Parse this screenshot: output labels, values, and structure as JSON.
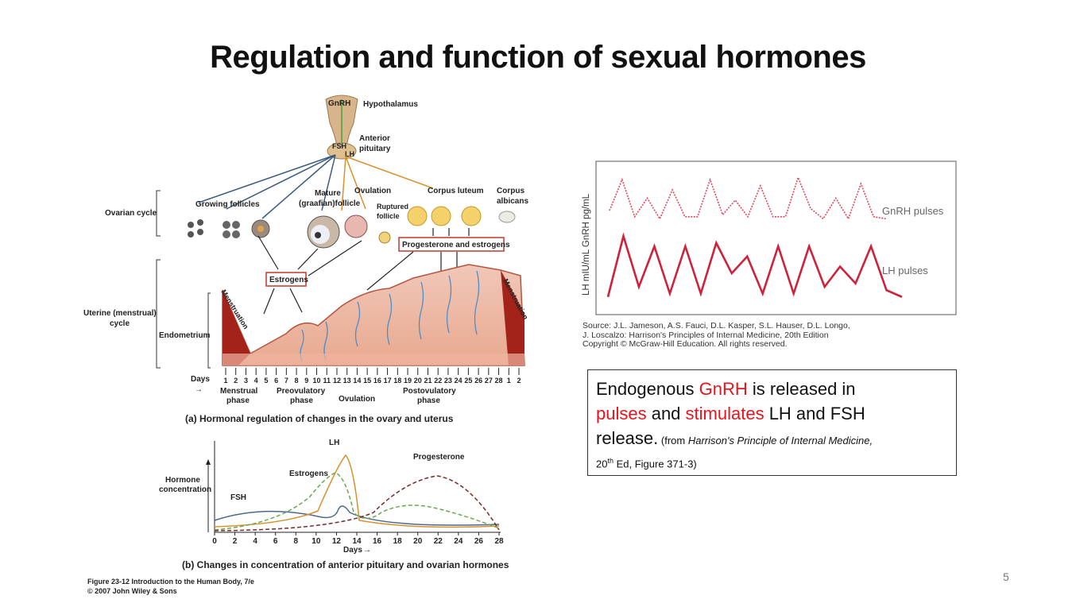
{
  "slide": {
    "title": "Regulation and function of sexual hormones",
    "page_number": "5"
  },
  "left_figure": {
    "hypothalamus_labels": {
      "gnrh": "GnRH",
      "hypothalamus": "Hypothalamus",
      "anterior": "Anterior",
      "pituitary": "pituitary",
      "fsh": "FSH",
      "lh": "LH"
    },
    "ovarian_cycle": "Ovarian cycle",
    "stages": {
      "growing": "Growing follicles",
      "mature1": "Mature",
      "mature2": "(graafian)follicle",
      "ovulation": "Ovulation",
      "ruptured1": "Ruptured",
      "ruptured2": "follicle",
      "corpus_luteum": "Corpus luteum",
      "corpus_albicans1": "Corpus",
      "corpus_albicans2": "albicans"
    },
    "boxes": {
      "estrogens": "Estrogens",
      "prog_estrogens": "Progesterone and estrogens"
    },
    "uterine1": "Uterine (menstrual)",
    "uterine2": "cycle",
    "endometrium": "Endometrium",
    "menstruation_left": "Menstruation",
    "menstruation_right": "Menstruation",
    "days_label": "Days",
    "days": [
      "1",
      "2",
      "3",
      "4",
      "5",
      "6",
      "7",
      "8",
      "9",
      "10",
      "11",
      "12",
      "13",
      "14",
      "15",
      "16",
      "17",
      "18",
      "19",
      "20",
      "21",
      "22",
      "23",
      "24",
      "25",
      "26",
      "27",
      "28",
      "1",
      "2"
    ],
    "phases": {
      "menstrual1": "Menstrual",
      "menstrual2": "phase",
      "preovulatory1": "Preovulatory",
      "preovulatory2": "phase",
      "ovulation": "Ovulation",
      "postovulatory1": "Postovulatory",
      "postovulatory2": "phase"
    },
    "caption_a": "(a) Hormonal regulation of changes in the ovary and uterus",
    "hormone_chart": {
      "ylabel1": "Hormone",
      "ylabel2": "concentration",
      "xlabel": "Days",
      "x_ticks": [
        "0",
        "2",
        "4",
        "6",
        "8",
        "10",
        "12",
        "14",
        "16",
        "18",
        "20",
        "22",
        "24",
        "26",
        "28"
      ],
      "series_labels": {
        "fsh": "FSH",
        "lh": "LH",
        "estrogens": "Estrogens",
        "progesterone": "Progesterone"
      },
      "colors": {
        "fsh": "#4a6a8c",
        "lh": "#d9902c",
        "estrogens": "#6aa84f",
        "progesterone": "#7a2a2a"
      }
    },
    "caption_b": "(b) Changes in concentration of anterior pituitary and ovarian hormones",
    "credit1": "Figure 23-12  Introduction to the Human Body, 7/e",
    "credit2": "© 2007 John Wiley & Sons"
  },
  "chart_data": {
    "type": "line",
    "ylabel": "LH mIU/mL GnRH pg/mL",
    "series": [
      {
        "name": "GnRH pulses",
        "style": "dotted",
        "color": "#e0485a",
        "values": [
          0.25,
          1.0,
          0.1,
          0.55,
          0.05,
          0.75,
          0.1,
          0.1,
          1.0,
          0.15,
          0.5,
          0.1,
          0.85,
          0.1,
          0.1,
          1.05,
          0.3,
          0.05,
          0.55,
          0.05,
          0.9,
          0.1,
          0.05
        ]
      },
      {
        "name": "LH pulses",
        "style": "solid",
        "color": "#d0213a",
        "values": [
          0.05,
          0.95,
          0.2,
          0.8,
          0.1,
          0.8,
          0.1,
          0.85,
          0.4,
          0.65,
          0.1,
          0.8,
          0.1,
          0.8,
          0.2,
          0.5,
          0.25,
          0.8,
          0.15,
          0.05
        ]
      }
    ],
    "legend": [
      "GnRH pulses",
      "LH pulses"
    ]
  },
  "source_note": {
    "line1": "Source: J.L. Jameson, A.S. Fauci, D.L. Kasper, S.L. Hauser, D.L. Longo,",
    "line2": "J. Loscalzo:  Harrison's Principles of Internal Medicine, 20th Edition",
    "line3": "Copyright © McGraw-Hill Education. All rights reserved."
  },
  "caption": {
    "p1": "Endogenous ",
    "p2": "GnRH",
    "p3": " is released in",
    "p4": "pulses",
    "p5": " and ",
    "p6": "stimulates",
    "p7": " LH and FSH",
    "p8": "release.",
    "p9": "  (from ",
    "p10": "Harrison's Principle of Internal Medicine,",
    "p11": "20",
    "p12": "th",
    "p13": " Ed, Figure 371-3)"
  }
}
